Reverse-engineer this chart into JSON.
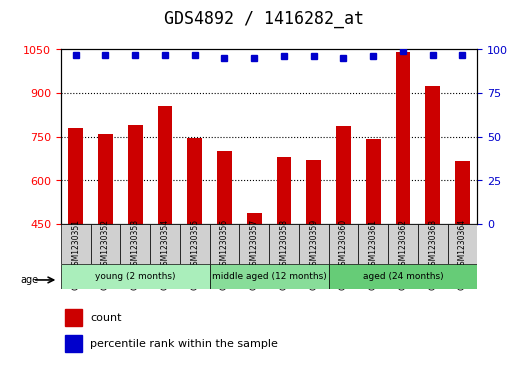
{
  "title": "GDS4892 / 1416282_at",
  "samples": [
    "GSM1230351",
    "GSM1230352",
    "GSM1230353",
    "GSM1230354",
    "GSM1230355",
    "GSM1230356",
    "GSM1230357",
    "GSM1230358",
    "GSM1230359",
    "GSM1230360",
    "GSM1230361",
    "GSM1230362",
    "GSM1230363",
    "GSM1230364"
  ],
  "counts": [
    780,
    760,
    790,
    855,
    745,
    700,
    488,
    680,
    670,
    785,
    740,
    1040,
    925,
    665
  ],
  "percentiles": [
    97,
    97,
    97,
    97,
    97,
    95,
    95,
    96,
    96,
    95,
    96,
    99,
    97,
    97
  ],
  "ylim_left": [
    450,
    1050
  ],
  "ylim_right": [
    0,
    100
  ],
  "yticks_left": [
    450,
    600,
    750,
    900,
    1050
  ],
  "yticks_right": [
    0,
    25,
    50,
    75,
    100
  ],
  "bar_color": "#cc0000",
  "dot_color": "#0000cc",
  "groups": [
    {
      "label": "young (2 months)",
      "start": 0,
      "end": 5,
      "color": "#90ee90"
    },
    {
      "label": "middle aged (12 months)",
      "start": 5,
      "end": 9,
      "color": "#66dd66"
    },
    {
      "label": "aged (24 months)",
      "start": 9,
      "end": 14,
      "color": "#44cc44"
    }
  ],
  "background_color": "#f0f0f0",
  "grid_color": "#000000",
  "legend_count_label": "count",
  "legend_percentile_label": "percentile rank within the sample",
  "age_label": "age",
  "title_fontsize": 12,
  "axis_fontsize": 9,
  "tick_fontsize": 8
}
